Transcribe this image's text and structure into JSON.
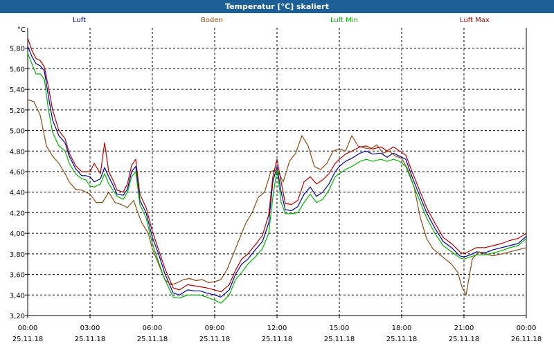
{
  "chart_data": {
    "type": "line",
    "title": "Temperatur [°C] skaliert",
    "unit": "°C",
    "ylim": [
      3.2,
      6.0
    ],
    "xlim": [
      0,
      24
    ],
    "yticks": [
      3.2,
      3.4,
      3.6,
      3.8,
      4.0,
      4.2,
      4.4,
      4.6,
      4.8,
      5.0,
      5.2,
      5.4,
      5.6,
      5.8
    ],
    "ytick_labels": [
      "3,20",
      "3,40",
      "3,60",
      "3,80",
      "4,00",
      "4,20",
      "4,40",
      "4,60",
      "4,80",
      "5,00",
      "5,20",
      "5,40",
      "5,60",
      "5,80"
    ],
    "xticks": [
      0,
      3,
      6,
      9,
      12,
      15,
      18,
      21,
      24
    ],
    "xtick_times": [
      "00:00",
      "03:00",
      "06:00",
      "09:00",
      "12:00",
      "15:00",
      "18:00",
      "21:00",
      "00:00"
    ],
    "xtick_dates": [
      "25.11.18",
      "25.11.18",
      "25.11.18",
      "25.11.18",
      "25.11.18",
      "25.11.18",
      "25.11.18",
      "25.11.18",
      "26.11.18"
    ],
    "series": [
      {
        "name": "Luft",
        "color": "#0000a0",
        "x": [
          0,
          0.2,
          0.4,
          0.6,
          0.8,
          1.0,
          1.2,
          1.5,
          1.8,
          2.0,
          2.3,
          2.6,
          2.8,
          3.0,
          3.2,
          3.5,
          3.7,
          3.9,
          4.1,
          4.3,
          4.6,
          4.8,
          5.0,
          5.2,
          5.4,
          5.7,
          6.0,
          6.3,
          6.6,
          7.0,
          7.3,
          7.7,
          8.0,
          8.3,
          8.6,
          9.0,
          9.3,
          9.7,
          10.0,
          10.3,
          10.6,
          11.0,
          11.3,
          11.6,
          11.8,
          12.0,
          12.2,
          12.4,
          12.7,
          13.0,
          13.3,
          13.6,
          13.9,
          14.2,
          14.5,
          14.8,
          15.0,
          15.3,
          15.6,
          16.0,
          16.3,
          16.6,
          17.0,
          17.3,
          17.6,
          17.9,
          18.2,
          18.5,
          18.8,
          19.2,
          19.6,
          20.0,
          20.4,
          20.8,
          21.0,
          21.3,
          21.6,
          22.0,
          22.4,
          22.8,
          23.2,
          23.6,
          24.0
        ],
        "values": [
          5.82,
          5.72,
          5.65,
          5.63,
          5.58,
          5.33,
          5.1,
          4.95,
          4.88,
          4.75,
          4.63,
          4.56,
          4.56,
          4.55,
          4.5,
          4.53,
          4.64,
          4.55,
          4.47,
          4.38,
          4.37,
          4.43,
          4.6,
          4.65,
          4.32,
          4.2,
          3.96,
          3.8,
          3.61,
          3.42,
          3.4,
          3.45,
          3.44,
          3.44,
          3.42,
          3.4,
          3.38,
          3.45,
          3.6,
          3.7,
          3.75,
          3.85,
          3.92,
          4.1,
          4.5,
          4.65,
          4.4,
          4.23,
          4.22,
          4.26,
          4.38,
          4.45,
          4.36,
          4.4,
          4.48,
          4.6,
          4.65,
          4.7,
          4.73,
          4.78,
          4.8,
          4.77,
          4.78,
          4.74,
          4.78,
          4.75,
          4.72,
          4.55,
          4.4,
          4.2,
          4.05,
          3.92,
          3.86,
          3.78,
          3.77,
          3.79,
          3.82,
          3.81,
          3.84,
          3.86,
          3.88,
          3.9,
          3.97
        ]
      },
      {
        "name": "Boden",
        "color": "#8b4a14",
        "x": [
          0,
          0.3,
          0.6,
          0.9,
          1.2,
          1.5,
          1.8,
          2.0,
          2.3,
          2.6,
          3.0,
          3.3,
          3.6,
          3.9,
          4.2,
          4.5,
          4.8,
          5.1,
          5.3,
          5.5,
          5.8,
          6.0,
          6.3,
          6.6,
          6.9,
          7.2,
          7.5,
          7.8,
          8.1,
          8.4,
          8.7,
          9.0,
          9.3,
          9.6,
          9.9,
          10.2,
          10.5,
          10.8,
          11.1,
          11.4,
          11.7,
          12.0,
          12.3,
          12.6,
          12.9,
          13.2,
          13.5,
          13.8,
          14.1,
          14.4,
          14.7,
          15.0,
          15.3,
          15.6,
          15.9,
          16.2,
          16.5,
          16.8,
          17.1,
          17.4,
          17.7,
          18.0,
          18.3,
          18.6,
          18.9,
          19.2,
          19.5,
          19.8,
          20.1,
          20.4,
          20.7,
          20.9,
          21.1,
          21.4,
          21.7,
          22.0,
          22.4,
          22.8,
          23.2,
          23.6,
          24.0
        ],
        "values": [
          5.3,
          5.28,
          5.15,
          4.85,
          4.75,
          4.68,
          4.58,
          4.5,
          4.43,
          4.42,
          4.38,
          4.3,
          4.3,
          4.4,
          4.3,
          4.28,
          4.25,
          4.32,
          4.2,
          4.1,
          4.0,
          3.85,
          3.7,
          3.55,
          3.5,
          3.52,
          3.55,
          3.56,
          3.54,
          3.55,
          3.52,
          3.53,
          3.55,
          3.65,
          3.8,
          3.95,
          4.1,
          4.2,
          4.35,
          4.4,
          4.6,
          4.62,
          4.5,
          4.7,
          4.78,
          4.95,
          4.85,
          4.65,
          4.62,
          4.68,
          4.8,
          4.82,
          4.8,
          4.95,
          4.85,
          4.83,
          4.82,
          4.86,
          4.78,
          4.8,
          4.75,
          4.73,
          4.62,
          4.45,
          4.15,
          3.95,
          3.85,
          3.8,
          3.75,
          3.7,
          3.62,
          3.48,
          3.4,
          3.75,
          3.82,
          3.8,
          3.78,
          3.8,
          3.82,
          3.84,
          3.86
        ]
      },
      {
        "name": "Luft Min",
        "color": "#00b400",
        "x": [
          0,
          0.2,
          0.4,
          0.6,
          0.8,
          1.0,
          1.2,
          1.5,
          1.8,
          2.0,
          2.3,
          2.6,
          2.8,
          3.0,
          3.2,
          3.5,
          3.7,
          3.9,
          4.1,
          4.3,
          4.6,
          4.8,
          5.0,
          5.2,
          5.4,
          5.7,
          6.0,
          6.3,
          6.6,
          7.0,
          7.3,
          7.7,
          8.0,
          8.3,
          8.6,
          9.0,
          9.3,
          9.7,
          10.0,
          10.3,
          10.6,
          11.0,
          11.3,
          11.6,
          11.8,
          12.0,
          12.2,
          12.4,
          12.7,
          13.0,
          13.3,
          13.6,
          13.9,
          14.2,
          14.5,
          14.8,
          15.0,
          15.3,
          15.6,
          16.0,
          16.3,
          16.6,
          17.0,
          17.3,
          17.6,
          17.9,
          18.2,
          18.5,
          18.8,
          19.2,
          19.6,
          20.0,
          20.4,
          20.8,
          21.0,
          21.3,
          21.6,
          22.0,
          22.4,
          22.8,
          23.2,
          23.6,
          24.0
        ],
        "values": [
          5.75,
          5.65,
          5.55,
          5.55,
          5.5,
          5.2,
          4.98,
          4.85,
          4.8,
          4.68,
          4.58,
          4.53,
          4.52,
          4.46,
          4.45,
          4.48,
          4.58,
          4.48,
          4.42,
          4.36,
          4.33,
          4.4,
          4.55,
          4.6,
          4.28,
          4.15,
          3.9,
          3.72,
          3.55,
          3.38,
          3.37,
          3.4,
          3.4,
          3.4,
          3.38,
          3.35,
          3.32,
          3.4,
          3.55,
          3.62,
          3.7,
          3.78,
          3.85,
          4.0,
          4.35,
          4.62,
          4.3,
          4.19,
          4.19,
          4.2,
          4.3,
          4.38,
          4.3,
          4.33,
          4.42,
          4.55,
          4.58,
          4.62,
          4.65,
          4.7,
          4.72,
          4.7,
          4.72,
          4.7,
          4.72,
          4.7,
          4.65,
          4.5,
          4.35,
          4.15,
          4.0,
          3.88,
          3.82,
          3.76,
          3.75,
          3.77,
          3.79,
          3.79,
          3.81,
          3.83,
          3.86,
          3.88,
          3.95
        ]
      },
      {
        "name": "Luft Max",
        "color": "#b40000",
        "x": [
          0,
          0.2,
          0.4,
          0.6,
          0.8,
          1.0,
          1.2,
          1.5,
          1.8,
          2.0,
          2.3,
          2.6,
          2.8,
          3.0,
          3.2,
          3.5,
          3.7,
          3.9,
          4.1,
          4.3,
          4.6,
          4.8,
          5.0,
          5.2,
          5.4,
          5.7,
          6.0,
          6.3,
          6.6,
          7.0,
          7.3,
          7.7,
          8.0,
          8.3,
          8.6,
          9.0,
          9.3,
          9.7,
          10.0,
          10.3,
          10.6,
          11.0,
          11.3,
          11.6,
          11.8,
          12.0,
          12.2,
          12.4,
          12.7,
          13.0,
          13.3,
          13.6,
          13.9,
          14.2,
          14.5,
          14.8,
          15.0,
          15.3,
          15.6,
          16.0,
          16.3,
          16.6,
          17.0,
          17.3,
          17.6,
          17.9,
          18.2,
          18.5,
          18.8,
          19.2,
          19.6,
          20.0,
          20.4,
          20.8,
          21.0,
          21.3,
          21.6,
          22.0,
          22.4,
          22.8,
          23.2,
          23.6,
          24.0
        ],
        "values": [
          5.9,
          5.78,
          5.7,
          5.68,
          5.62,
          5.42,
          5.2,
          5.0,
          4.92,
          4.78,
          4.66,
          4.6,
          4.6,
          4.6,
          4.68,
          4.58,
          4.88,
          4.6,
          4.52,
          4.42,
          4.4,
          4.48,
          4.66,
          4.72,
          4.38,
          4.25,
          4.02,
          3.84,
          3.66,
          3.47,
          3.45,
          3.5,
          3.49,
          3.48,
          3.47,
          3.45,
          3.43,
          3.5,
          3.64,
          3.75,
          3.8,
          3.9,
          3.98,
          4.18,
          4.55,
          4.72,
          4.5,
          4.29,
          4.28,
          4.32,
          4.5,
          4.55,
          4.48,
          4.52,
          4.58,
          4.68,
          4.72,
          4.77,
          4.8,
          4.84,
          4.85,
          4.82,
          4.84,
          4.8,
          4.84,
          4.8,
          4.76,
          4.6,
          4.45,
          4.25,
          4.1,
          3.96,
          3.9,
          3.82,
          3.8,
          3.83,
          3.86,
          3.86,
          3.88,
          3.9,
          3.93,
          3.95,
          4.0
        ]
      }
    ]
  }
}
